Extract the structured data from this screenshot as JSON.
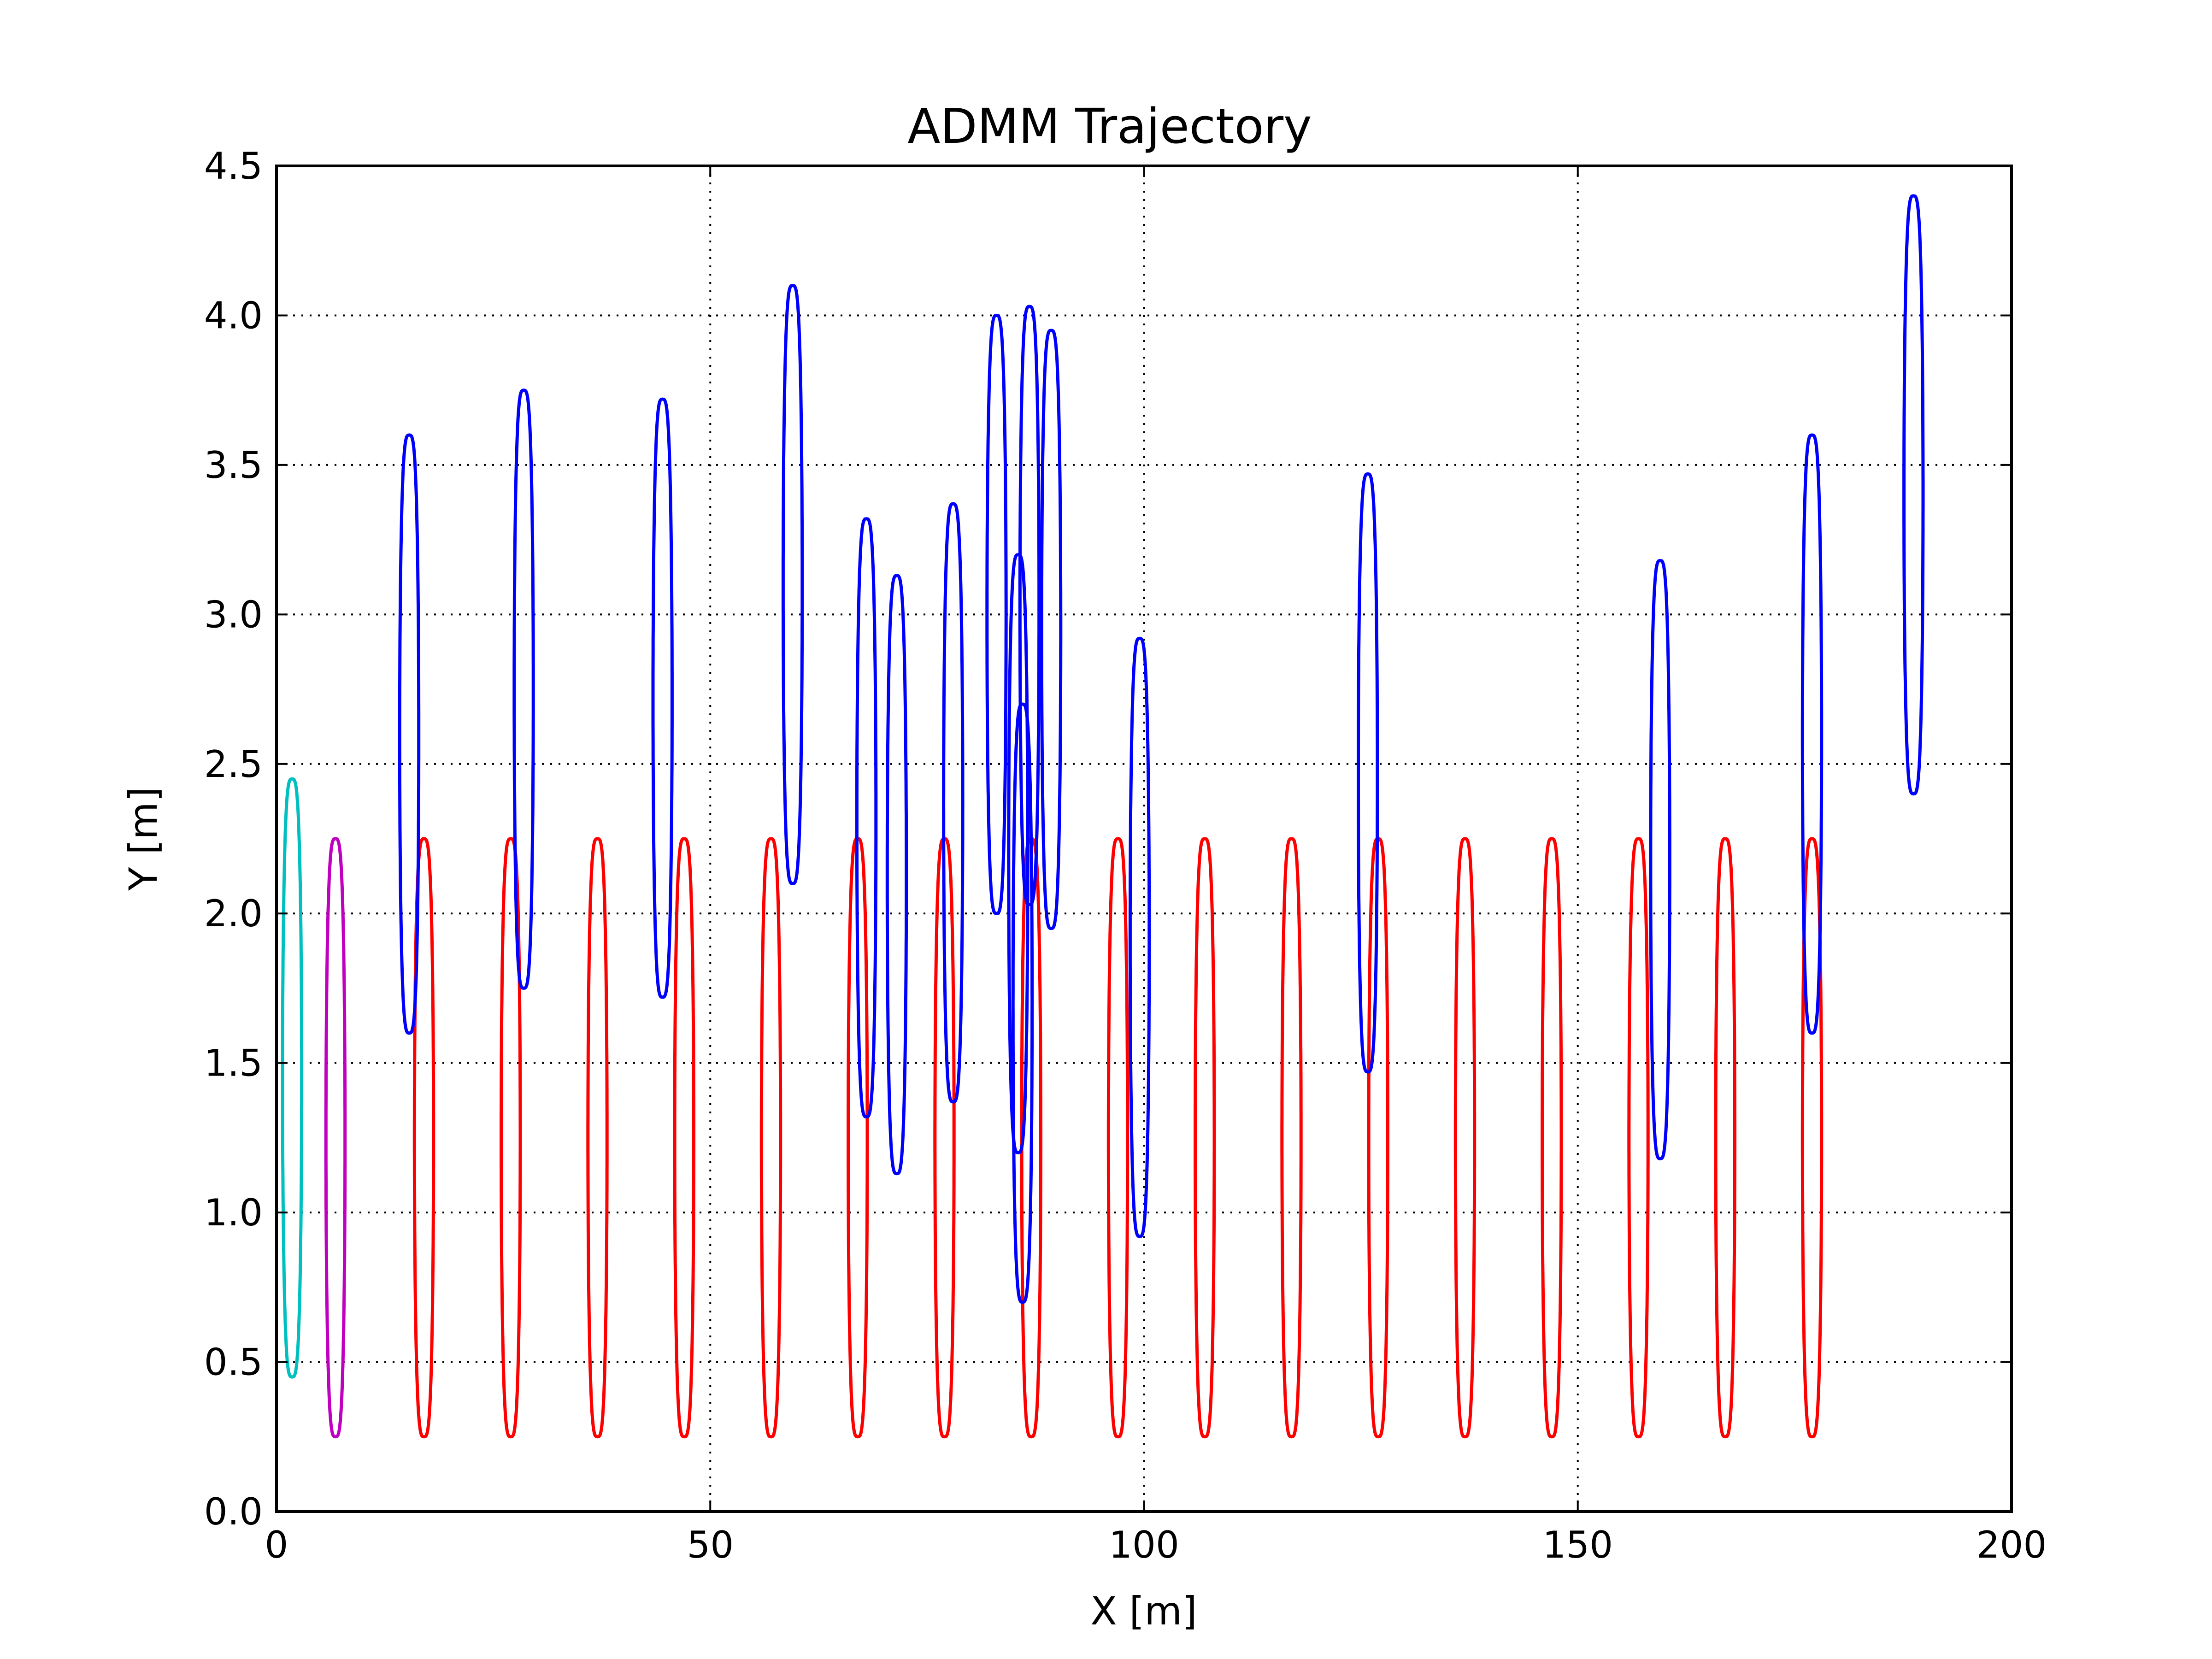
{
  "chart_data": {
    "type": "line",
    "title": "ADMM Trajectory",
    "xlabel": "X [m]",
    "ylabel": "Y [m]",
    "xlim": [
      0,
      200
    ],
    "ylim": [
      0.0,
      4.5
    ],
    "xticks": [
      "0",
      "50",
      "100",
      "150",
      "200"
    ],
    "yticks": [
      "0.0",
      "0.5",
      "1.0",
      "1.5",
      "2.0",
      "2.5",
      "3.0",
      "3.5",
      "4.0",
      "4.5"
    ],
    "grid": true,
    "legend": "none",
    "trajectory_shape": "narrow closed loops, each loop spans center x ± half_width and y from y_min to y_max",
    "series": [
      {
        "color": "#00bfbf",
        "loops": [
          {
            "x": 1.8,
            "half_width": 1.1,
            "y_min": 0.45,
            "y_max": 2.45
          }
        ]
      },
      {
        "color": "#bf00bf",
        "loops": [
          {
            "x": 6.8,
            "half_width": 1.1,
            "y_min": 0.25,
            "y_max": 2.25
          }
        ]
      },
      {
        "color": "#ff0000",
        "loops": [
          {
            "x": 17.0,
            "half_width": 1.1,
            "y_min": 0.25,
            "y_max": 2.25
          },
          {
            "x": 27.0,
            "half_width": 1.1,
            "y_min": 0.25,
            "y_max": 2.25
          },
          {
            "x": 37.0,
            "half_width": 1.1,
            "y_min": 0.25,
            "y_max": 2.25
          },
          {
            "x": 47.0,
            "half_width": 1.1,
            "y_min": 0.25,
            "y_max": 2.25
          },
          {
            "x": 57.0,
            "half_width": 1.1,
            "y_min": 0.25,
            "y_max": 2.25
          },
          {
            "x": 67.0,
            "half_width": 1.1,
            "y_min": 0.25,
            "y_max": 2.25
          },
          {
            "x": 77.0,
            "half_width": 1.1,
            "y_min": 0.25,
            "y_max": 2.25
          },
          {
            "x": 87.0,
            "half_width": 1.1,
            "y_min": 0.25,
            "y_max": 2.25
          },
          {
            "x": 97.0,
            "half_width": 1.1,
            "y_min": 0.25,
            "y_max": 2.25
          },
          {
            "x": 107.0,
            "half_width": 1.1,
            "y_min": 0.25,
            "y_max": 2.25
          },
          {
            "x": 117.0,
            "half_width": 1.1,
            "y_min": 0.25,
            "y_max": 2.25
          },
          {
            "x": 127.0,
            "half_width": 1.1,
            "y_min": 0.25,
            "y_max": 2.25
          },
          {
            "x": 137.0,
            "half_width": 1.1,
            "y_min": 0.25,
            "y_max": 2.25
          },
          {
            "x": 147.0,
            "half_width": 1.1,
            "y_min": 0.25,
            "y_max": 2.25
          },
          {
            "x": 157.0,
            "half_width": 1.1,
            "y_min": 0.25,
            "y_max": 2.25
          },
          {
            "x": 167.0,
            "half_width": 1.1,
            "y_min": 0.25,
            "y_max": 2.25
          },
          {
            "x": 177.0,
            "half_width": 1.1,
            "y_min": 0.25,
            "y_max": 2.25
          }
        ]
      },
      {
        "color": "#0000ff",
        "loops": [
          {
            "x": 15.3,
            "half_width": 1.1,
            "y_min": 1.6,
            "y_max": 3.6
          },
          {
            "x": 28.5,
            "half_width": 1.1,
            "y_min": 1.75,
            "y_max": 3.75
          },
          {
            "x": 44.5,
            "half_width": 1.1,
            "y_min": 1.72,
            "y_max": 3.72
          },
          {
            "x": 59.5,
            "half_width": 1.1,
            "y_min": 2.1,
            "y_max": 4.1
          },
          {
            "x": 68.0,
            "half_width": 1.1,
            "y_min": 1.32,
            "y_max": 3.32
          },
          {
            "x": 71.5,
            "half_width": 1.1,
            "y_min": 1.13,
            "y_max": 3.13
          },
          {
            "x": 78.0,
            "half_width": 1.1,
            "y_min": 1.37,
            "y_max": 3.37
          },
          {
            "x": 83.0,
            "half_width": 1.1,
            "y_min": 2.0,
            "y_max": 4.0
          },
          {
            "x": 85.5,
            "half_width": 1.1,
            "y_min": 1.2,
            "y_max": 3.2
          },
          {
            "x": 86.0,
            "half_width": 1.1,
            "y_min": 0.7,
            "y_max": 2.7
          },
          {
            "x": 86.8,
            "half_width": 1.1,
            "y_min": 2.03,
            "y_max": 4.03
          },
          {
            "x": 89.3,
            "half_width": 1.1,
            "y_min": 1.95,
            "y_max": 3.95
          },
          {
            "x": 99.5,
            "half_width": 1.1,
            "y_min": 0.92,
            "y_max": 2.92
          },
          {
            "x": 125.8,
            "half_width": 1.1,
            "y_min": 1.47,
            "y_max": 3.47
          },
          {
            "x": 159.5,
            "half_width": 1.1,
            "y_min": 1.18,
            "y_max": 3.18
          },
          {
            "x": 177.0,
            "half_width": 1.1,
            "y_min": 1.6,
            "y_max": 3.6
          },
          {
            "x": 188.7,
            "half_width": 1.1,
            "y_min": 2.4,
            "y_max": 4.4
          }
        ]
      }
    ]
  }
}
